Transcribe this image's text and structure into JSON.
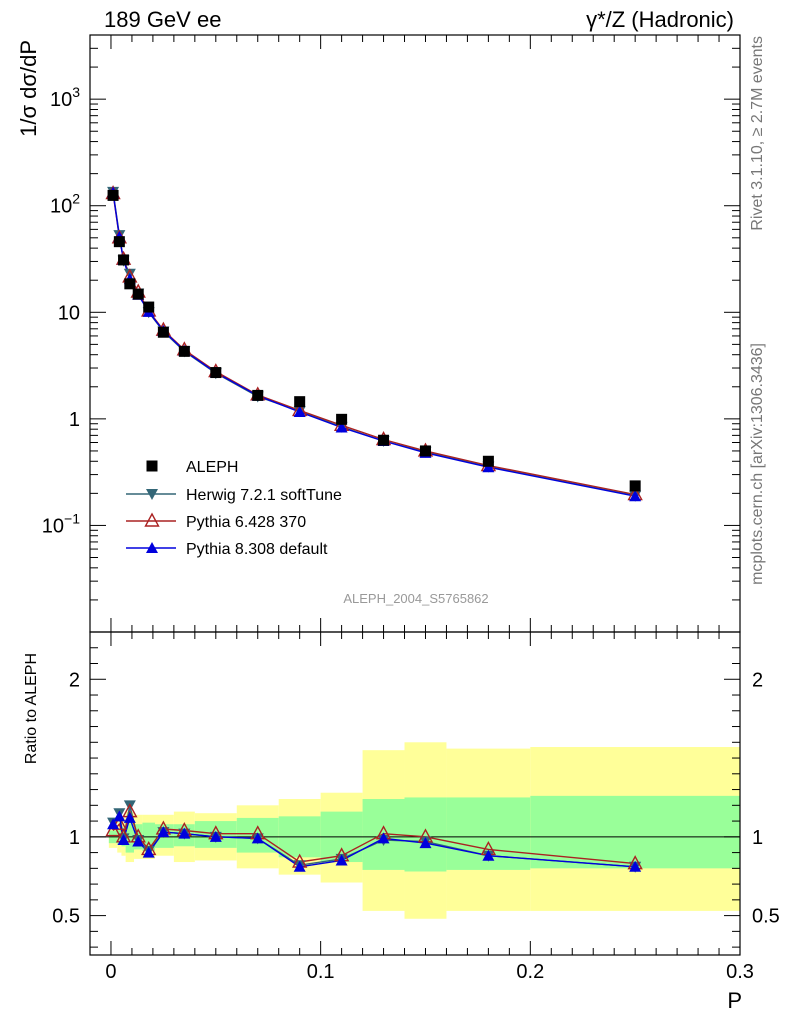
{
  "header": {
    "left": "189 GeV ee",
    "right": "γ*/Z (Hadronic)"
  },
  "side_labels": {
    "rivet": "Rivet 3.1.10, ≥ 2.7M events",
    "mcplots": "mcplots.cern.ch [arXiv:1306.3436]"
  },
  "analysis_label": "ALEPH_2004_S5765862",
  "colors": {
    "data": "#000000",
    "herwig": "#336677",
    "pythia6": "#aa2222",
    "pythia8": "#0000dd",
    "band_inner": "#99ff99",
    "band_outer": "#ffff99"
  },
  "chart_data": [
    {
      "type": "scatter",
      "panel": "main",
      "ylabel": "1/σ  dσ/dP",
      "xlim": [
        -0.01,
        0.3
      ],
      "ylim": [
        0.01,
        4000
      ],
      "yscale": "log",
      "y_tick_labels": [
        "10^-1",
        "1",
        "10",
        "10^2",
        "10^3"
      ],
      "x": [
        0.001,
        0.004,
        0.006,
        0.009,
        0.013,
        0.018,
        0.025,
        0.035,
        0.05,
        0.07,
        0.09,
        0.11,
        0.13,
        0.15,
        0.18,
        0.25
      ],
      "series": [
        {
          "name": "ALEPH",
          "style": "data",
          "values": [
            125,
            46,
            31,
            18.5,
            14.8,
            11.2,
            6.5,
            4.3,
            2.72,
            1.66,
            1.45,
            0.99,
            0.63,
            0.5,
            0.4,
            0.235
          ]
        },
        {
          "name": "Herwig 7.2.1 softTune",
          "style": "herwig",
          "values": [
            135,
            53,
            30.5,
            23,
            15,
            10,
            6.6,
            4.3,
            2.68,
            1.62,
            1.18,
            0.84,
            0.62,
            0.49,
            0.356,
            0.19
          ]
        },
        {
          "name": "Pythia 6.428 370",
          "style": "pythia6",
          "values": [
            130,
            50,
            31.5,
            21.5,
            15.5,
            10.3,
            6.8,
            4.45,
            2.78,
            1.68,
            1.2,
            0.87,
            0.64,
            0.5,
            0.365,
            0.195
          ]
        },
        {
          "name": "Pythia 8.308 default",
          "style": "pythia8",
          "values": [
            133,
            51,
            31,
            20.5,
            14.6,
            10.1,
            6.7,
            4.35,
            2.72,
            1.65,
            1.16,
            0.83,
            0.62,
            0.48,
            0.352,
            0.188
          ]
        }
      ],
      "legend_placement": "bottom-left"
    },
    {
      "type": "line",
      "panel": "ratio",
      "xlabel": "P",
      "ylabel": "Ratio to ALEPH",
      "xlim": [
        -0.01,
        0.3
      ],
      "ylim": [
        0.25,
        2.3
      ],
      "x_tick_labels": [
        "0",
        "0.1",
        "0.2",
        "0.3"
      ],
      "y_tick_labels": [
        "0.5",
        "1",
        "2"
      ],
      "reference": 1,
      "x": [
        0.001,
        0.004,
        0.006,
        0.009,
        0.013,
        0.018,
        0.025,
        0.035,
        0.05,
        0.07,
        0.09,
        0.11,
        0.13,
        0.15,
        0.18,
        0.25
      ],
      "series": [
        {
          "name": "Herwig 7.2.1 softTune",
          "style": "herwig",
          "values": [
            1.09,
            1.15,
            0.99,
            1.2,
            0.98,
            0.91,
            1.03,
            1.02,
            1.0,
            0.99,
            0.82,
            0.86,
            0.98,
            0.97,
            0.88,
            0.81
          ]
        },
        {
          "name": "Pythia 6.428 370",
          "style": "pythia6",
          "values": [
            1.04,
            1.08,
            1.0,
            1.16,
            1.0,
            0.92,
            1.05,
            1.04,
            1.02,
            1.02,
            0.84,
            0.88,
            1.02,
            1.0,
            0.92,
            0.83
          ]
        },
        {
          "name": "Pythia 8.308 default",
          "style": "pythia8",
          "values": [
            1.08,
            1.13,
            0.98,
            1.12,
            0.97,
            0.9,
            1.03,
            1.02,
            1.0,
            0.99,
            0.81,
            0.85,
            0.99,
            0.96,
            0.88,
            0.81
          ]
        }
      ],
      "band": {
        "edges": [
          -0.001,
          0.003,
          0.005,
          0.007,
          0.011,
          0.015,
          0.021,
          0.03,
          0.04,
          0.06,
          0.08,
          0.1,
          0.12,
          0.14,
          0.16,
          0.2,
          0.3
        ],
        "inner_low": [
          0.96,
          0.95,
          0.94,
          0.9,
          0.92,
          0.91,
          0.93,
          0.94,
          0.93,
          0.9,
          0.87,
          0.84,
          0.79,
          0.78,
          0.79,
          0.8
        ],
        "inner_high": [
          1.04,
          1.05,
          1.06,
          1.1,
          1.08,
          1.09,
          1.08,
          1.08,
          1.1,
          1.12,
          1.13,
          1.16,
          1.24,
          1.25,
          1.25,
          1.26
        ],
        "outer_low": [
          0.93,
          0.9,
          0.88,
          0.84,
          0.86,
          0.86,
          0.88,
          0.84,
          0.85,
          0.8,
          0.76,
          0.71,
          0.53,
          0.48,
          0.53,
          0.53
        ],
        "outer_high": [
          1.07,
          1.1,
          1.12,
          1.16,
          1.14,
          1.14,
          1.14,
          1.16,
          1.15,
          1.2,
          1.24,
          1.28,
          1.55,
          1.6,
          1.56,
          1.57
        ]
      }
    }
  ]
}
